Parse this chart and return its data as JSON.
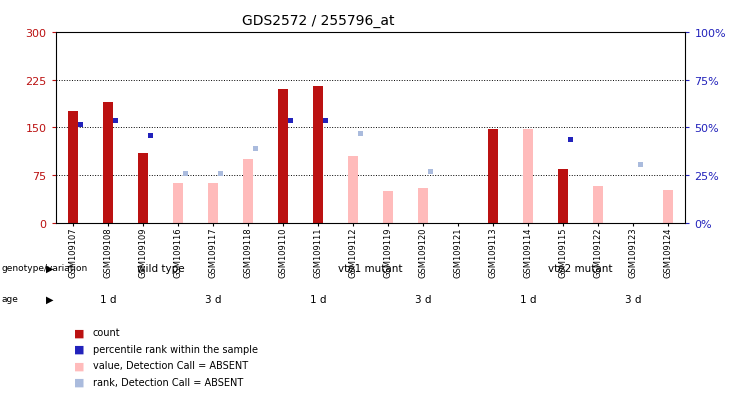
{
  "title": "GDS2572 / 255796_at",
  "samples": [
    "GSM109107",
    "GSM109108",
    "GSM109109",
    "GSM109116",
    "GSM109117",
    "GSM109118",
    "GSM109110",
    "GSM109111",
    "GSM109112",
    "GSM109119",
    "GSM109120",
    "GSM109121",
    "GSM109113",
    "GSM109114",
    "GSM109115",
    "GSM109122",
    "GSM109123",
    "GSM109124"
  ],
  "count_present": [
    175,
    190,
    110,
    null,
    null,
    null,
    210,
    215,
    null,
    null,
    null,
    null,
    148,
    null,
    85,
    null,
    null,
    null
  ],
  "count_absent": [
    null,
    null,
    null,
    62,
    62,
    100,
    null,
    null,
    105,
    50,
    55,
    null,
    null,
    148,
    null,
    58,
    null,
    52
  ],
  "pct_present": [
    53,
    55,
    47,
    null,
    null,
    null,
    55,
    55,
    null,
    null,
    null,
    null,
    null,
    null,
    45,
    null,
    null,
    null
  ],
  "pct_absent": [
    null,
    null,
    null,
    27,
    27,
    40,
    null,
    null,
    48,
    null,
    28,
    null,
    null,
    null,
    null,
    null,
    32,
    null
  ],
  "genotype_groups": [
    {
      "label": "wild type",
      "start": 0,
      "end": 6,
      "color": "#CCFFCC"
    },
    {
      "label": "vte1 mutant",
      "start": 6,
      "end": 12,
      "color": "#55CC55"
    },
    {
      "label": "vte2 mutant",
      "start": 12,
      "end": 18,
      "color": "#44BB44"
    }
  ],
  "age_groups": [
    {
      "label": "1 d",
      "start": 0,
      "end": 3,
      "color": "#FF88FF"
    },
    {
      "label": "3 d",
      "start": 3,
      "end": 6,
      "color": "#CC44CC"
    },
    {
      "label": "1 d",
      "start": 6,
      "end": 9,
      "color": "#FF88FF"
    },
    {
      "label": "3 d",
      "start": 9,
      "end": 12,
      "color": "#CC44CC"
    },
    {
      "label": "1 d",
      "start": 12,
      "end": 15,
      "color": "#FF88FF"
    },
    {
      "label": "3 d",
      "start": 15,
      "end": 18,
      "color": "#CC44CC"
    }
  ],
  "ylim_left": [
    0,
    300
  ],
  "ylim_right": [
    0,
    100
  ],
  "yticks_left": [
    0,
    75,
    150,
    225,
    300
  ],
  "yticks_right": [
    0,
    25,
    50,
    75,
    100
  ],
  "count_color": "#BB1111",
  "count_absent_color": "#FFBBBB",
  "pct_color": "#2222BB",
  "pct_absent_color": "#AABBDD",
  "background_color": "#FFFFFF"
}
